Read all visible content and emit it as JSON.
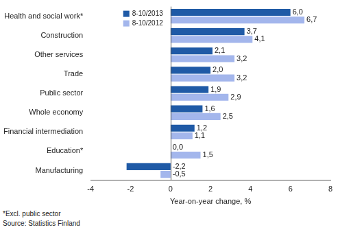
{
  "chart_data": {
    "type": "bar",
    "orientation": "horizontal",
    "categories": [
      "Health and social work*",
      "Construction",
      "Other services",
      "Trade",
      "Public sector",
      "Whole economy",
      "Financial intermediation",
      "Education*",
      "Manufacturing"
    ],
    "series": [
      {
        "name": "8-10/2013",
        "color": "#1f5aa6",
        "values": [
          6.0,
          3.7,
          2.1,
          2.0,
          1.9,
          1.6,
          1.2,
          0.0,
          -2.2
        ],
        "value_labels": [
          "6,0",
          "3,7",
          "2,1",
          "2,0",
          "1,9",
          "1,6",
          "1,2",
          "0,0",
          "-2,2"
        ]
      },
      {
        "name": "8-10/2012",
        "color": "#a3b6ec",
        "values": [
          6.7,
          4.1,
          3.2,
          3.2,
          2.9,
          2.5,
          1.1,
          1.5,
          -0.5
        ],
        "value_labels": [
          "6,7",
          "4,1",
          "3,2",
          "3,2",
          "2,9",
          "2,5",
          "1,1",
          "1,5",
          "-0,5"
        ]
      }
    ],
    "xlabel": "Year-on-year change, %",
    "xlim": [
      -4,
      8
    ],
    "xticks": [
      -4,
      -2,
      0,
      2,
      4,
      6,
      8
    ],
    "grid": false,
    "legend": "top",
    "data_labels": true,
    "annotations": [
      "*Excl. public sector",
      "Source: Statistics Finland"
    ]
  }
}
